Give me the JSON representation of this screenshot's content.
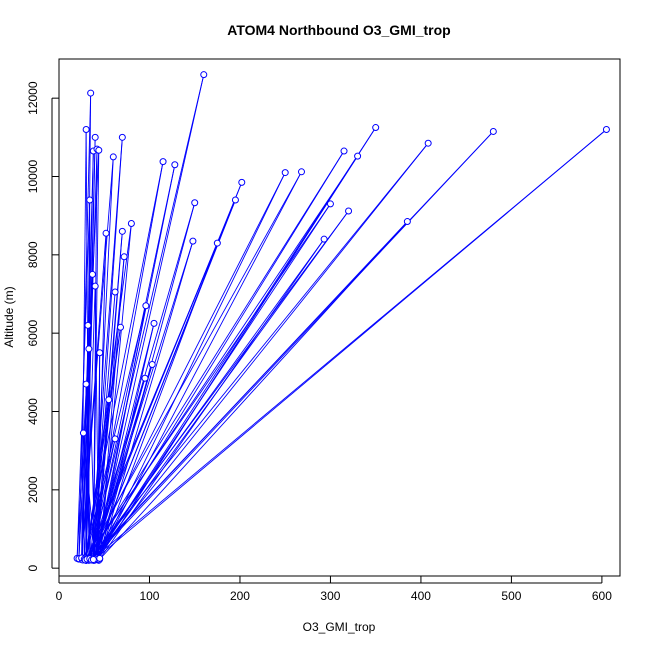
{
  "chart_data": {
    "type": "line",
    "title": "ATOM4 Northbound O3_GMI_trop",
    "xlabel": "O3_GMI_trop",
    "ylabel": "Altitude (m)",
    "xlim": [
      0,
      620
    ],
    "ylim": [
      -200,
      13000
    ],
    "xticks": [
      0,
      100,
      200,
      300,
      400,
      500,
      600
    ],
    "yticks": [
      0,
      2000,
      4000,
      6000,
      8000,
      10000,
      12000
    ],
    "grid": false,
    "legend": "none",
    "colors": {
      "series": "#0000ff",
      "axis": "#000000"
    },
    "marker": "open-circle",
    "series": [
      {
        "points": [
          [
            22,
            230
          ],
          [
            35,
            12130
          ],
          [
            30,
            220
          ],
          [
            40,
            11000
          ],
          [
            28,
            210
          ],
          [
            38,
            10650
          ],
          [
            25,
            220
          ],
          [
            30,
            11200
          ],
          [
            33,
            200
          ],
          [
            34,
            9400
          ],
          [
            20,
            250
          ],
          [
            37,
            7500
          ],
          [
            28,
            260
          ],
          [
            42,
            10700
          ],
          [
            38,
            230
          ],
          [
            44,
            10670
          ],
          [
            22,
            240
          ],
          [
            33,
            5600
          ],
          [
            26,
            210
          ],
          [
            30,
            4700
          ],
          [
            35,
            230
          ],
          [
            27,
            3450
          ],
          [
            40,
            250
          ],
          [
            32,
            6200
          ],
          [
            30,
            200
          ],
          [
            40,
            7200
          ],
          [
            44,
            210
          ],
          [
            45,
            5500
          ],
          [
            42,
            230
          ],
          [
            52,
            8550
          ],
          [
            25,
            260
          ],
          [
            60,
            10500
          ],
          [
            38,
            200
          ],
          [
            70,
            11000
          ],
          [
            35,
            230
          ],
          [
            62,
            3300
          ],
          [
            29,
            220
          ],
          [
            55,
            4300
          ],
          [
            42,
            250
          ],
          [
            70,
            8600
          ],
          [
            40,
            210
          ],
          [
            72,
            7950
          ],
          [
            45,
            230
          ],
          [
            80,
            8800
          ],
          [
            30,
            200
          ],
          [
            68,
            6150
          ],
          [
            34,
            240
          ],
          [
            95,
            4850
          ],
          [
            38,
            220
          ],
          [
            103,
            5200
          ],
          [
            42,
            260
          ],
          [
            96,
            6700
          ],
          [
            28,
            230
          ],
          [
            115,
            10380
          ],
          [
            35,
            250
          ],
          [
            160,
            12600
          ],
          [
            40,
            220
          ],
          [
            128,
            10300
          ],
          [
            36,
            210
          ],
          [
            150,
            9330
          ],
          [
            44,
            240
          ],
          [
            175,
            8300
          ],
          [
            30,
            200
          ],
          [
            195,
            9400
          ],
          [
            38,
            230
          ],
          [
            202,
            9850
          ],
          [
            33,
            250
          ],
          [
            250,
            10100
          ],
          [
            42,
            220
          ],
          [
            268,
            10120
          ],
          [
            29,
            210
          ],
          [
            300,
            9300
          ],
          [
            40,
            230
          ],
          [
            320,
            9120
          ],
          [
            35,
            240
          ],
          [
            385,
            8850
          ],
          [
            44,
            200
          ],
          [
            293,
            8400
          ],
          [
            37,
            250
          ],
          [
            315,
            10650
          ],
          [
            31,
            230
          ],
          [
            330,
            10520
          ],
          [
            43,
            220
          ],
          [
            350,
            11250
          ],
          [
            39,
            200
          ],
          [
            408,
            10850
          ],
          [
            34,
            240
          ],
          [
            480,
            11150
          ],
          [
            36,
            210
          ],
          [
            605,
            11200
          ],
          [
            40,
            230
          ],
          [
            105,
            6250
          ],
          [
            45,
            250
          ],
          [
            148,
            8350
          ],
          [
            38,
            220
          ],
          [
            62,
            7050
          ]
        ]
      }
    ]
  }
}
